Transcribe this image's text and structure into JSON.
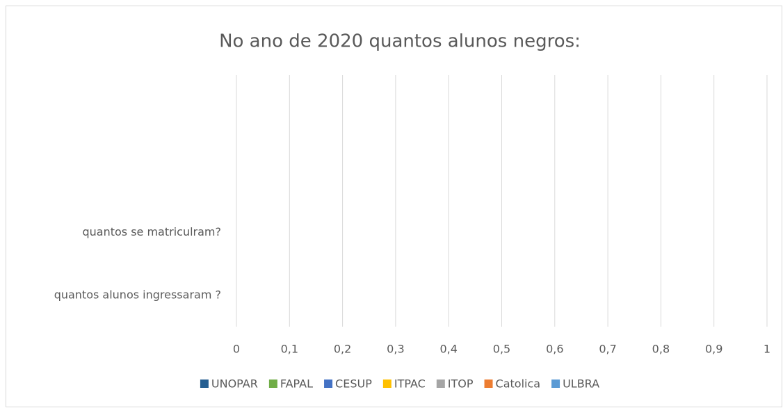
{
  "chart_data": {
    "type": "bar",
    "orientation": "horizontal",
    "title": "No ano de 2020 quantos alunos negros:",
    "categories": [
      "quantos alunos ingressaram ?",
      "quantos se matriculram?",
      null,
      null
    ],
    "series": [
      {
        "name": "UNOPAR",
        "color": "#255e91",
        "values": [
          null,
          null,
          null,
          null
        ]
      },
      {
        "name": "FAPAL",
        "color": "#70ad47",
        "values": [
          null,
          null,
          null,
          null
        ]
      },
      {
        "name": "CESUP",
        "color": "#4472c4",
        "values": [
          null,
          null,
          null,
          null
        ]
      },
      {
        "name": "ITPAC",
        "color": "#ffc000",
        "values": [
          null,
          null,
          null,
          null
        ]
      },
      {
        "name": "ITOP",
        "color": "#a5a5a5",
        "values": [
          null,
          null,
          null,
          null
        ]
      },
      {
        "name": "Catolica",
        "color": "#ed7d31",
        "values": [
          null,
          null,
          null,
          null
        ]
      },
      {
        "name": "ULBRA",
        "color": "#5b9bd5",
        "values": [
          null,
          null,
          null,
          null
        ]
      }
    ],
    "xlim": [
      0,
      1
    ],
    "xticks": [
      0,
      {
        "value": 0.1,
        "label": "0,1"
      },
      {
        "value": 0.2,
        "label": "0,2"
      },
      {
        "value": 0.3,
        "label": "0,3"
      },
      {
        "value": 0.4,
        "label": "0,4"
      },
      {
        "value": 0.5,
        "label": "0,5"
      },
      {
        "value": 0.6,
        "label": "0,6"
      },
      {
        "value": 0.7,
        "label": "0,7"
      },
      {
        "value": 0.8,
        "label": "0,8"
      },
      {
        "value": 0.9,
        "label": "0,9"
      },
      1
    ],
    "grid": true,
    "legend": "bottom"
  }
}
